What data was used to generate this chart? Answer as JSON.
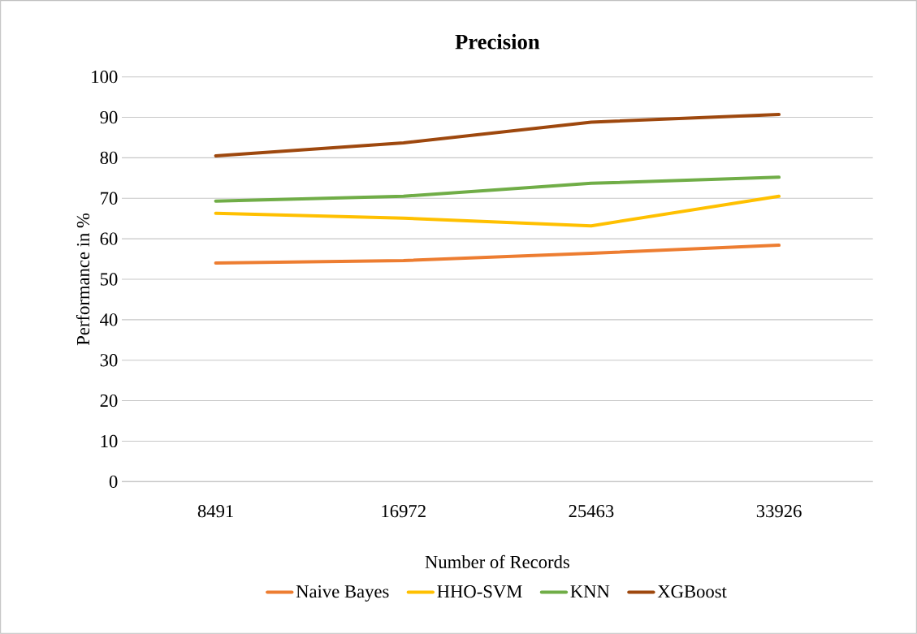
{
  "chart_data": {
    "type": "line",
    "title": "Precision",
    "xlabel": "Number of Records",
    "ylabel": "Performance in %",
    "categories": [
      "8491",
      "16972",
      "25463",
      "33926"
    ],
    "series": [
      {
        "name": "Naive Bayes",
        "color": "#ed7d31",
        "values": [
          54,
          54.6,
          56.4,
          58.4
        ]
      },
      {
        "name": "HHO-SVM",
        "color": "#ffc000",
        "values": [
          66.3,
          65.1,
          63.2,
          70.5
        ]
      },
      {
        "name": "KNN",
        "color": "#70ad47",
        "values": [
          69.3,
          70.5,
          73.7,
          75.2
        ]
      },
      {
        "name": "XGBoost",
        "color": "#9e480e",
        "values": [
          80.5,
          83.7,
          88.8,
          90.7
        ]
      }
    ],
    "ylim": [
      0,
      100
    ],
    "yticks": [
      0,
      10,
      20,
      30,
      40,
      50,
      60,
      70,
      80,
      90,
      100
    ],
    "grid": "y",
    "legend": "bottom",
    "marker": "none",
    "line_style": "solid"
  }
}
